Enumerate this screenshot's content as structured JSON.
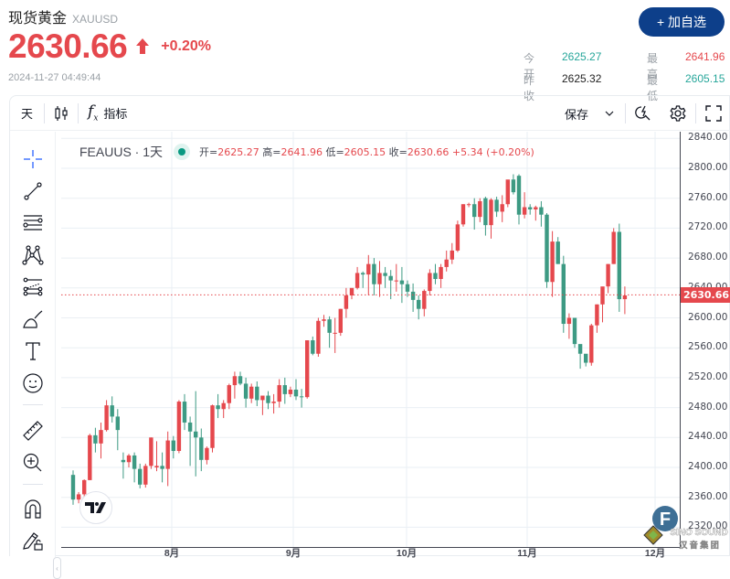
{
  "header": {
    "title": "现货黄金",
    "symbol": "XAUUSD",
    "price": "2630.66",
    "change_pct": "+0.20%",
    "timestamp": "2024-11-27 04:49:44",
    "add_watchlist_label": "+ 加自选",
    "stats": {
      "open_label": "今开",
      "open": "2625.27",
      "prev_close_label": "昨收",
      "prev_close": "2625.32",
      "high_label": "最高",
      "high": "2641.96",
      "low_label": "最低",
      "low": "2605.15"
    }
  },
  "toolbar": {
    "interval": "天",
    "chart_type_icon": "candlestick-icon",
    "indicators_label": "指标",
    "save_label": "保存",
    "icons": [
      "chevron-down-icon",
      "quick-search-icon",
      "gear-icon",
      "fullscreen-icon"
    ]
  },
  "left_tools": [
    "crosshair-icon",
    "trend-line-icon",
    "horizontal-lines-icon",
    "pattern-icon",
    "fib-icon",
    "brush-icon",
    "text-icon",
    "emoji-icon",
    "ruler-icon",
    "zoom-in-icon",
    "magnet-icon",
    "lock-drawings-icon"
  ],
  "legend": {
    "symbol": "FEAUUS · 1天",
    "open_label": "开=",
    "open": "2625.27",
    "high_label": "高=",
    "high": "2641.96",
    "low_label": "低=",
    "low": "2605.15",
    "close_label": "收=",
    "close": "2630.66",
    "change": "+5.34 (+0.20%)"
  },
  "colors": {
    "up": "#e5484d",
    "down": "#3d9a83",
    "accent": "#0d3f8a",
    "grid": "#eaeff4"
  },
  "watermark": {
    "line1": "SINO SOUND",
    "line2": "汉 音 集 团"
  },
  "chart_data": {
    "type": "candlestick",
    "title": "FEAUUS · 1天",
    "ylim": [
      2312,
      2848
    ],
    "y_ticks": [
      2840,
      2800,
      2760,
      2720,
      2680,
      2640,
      2600,
      2560,
      2520,
      2480,
      2440,
      2400,
      2360,
      2320
    ],
    "x_ticks": [
      {
        "label": "8月",
        "index": 18
      },
      {
        "label": "9月",
        "index": 40
      },
      {
        "label": "10月",
        "index": 61
      },
      {
        "label": "11月",
        "index": 84
      },
      {
        "label": "12月",
        "index": 107
      }
    ],
    "last_price": "2630.66",
    "grid": true,
    "ohlc": [
      [
        2390,
        2396,
        2350,
        2357
      ],
      [
        2357,
        2367,
        2352,
        2364
      ],
      [
        2364,
        2384,
        2356,
        2383
      ],
      [
        2383,
        2445,
        2383,
        2443
      ],
      [
        2443,
        2453,
        2420,
        2432
      ],
      [
        2432,
        2460,
        2412,
        2450
      ],
      [
        2450,
        2490,
        2448,
        2483
      ],
      [
        2483,
        2495,
        2460,
        2468
      ],
      [
        2468,
        2478,
        2423,
        2450
      ],
      [
        2410,
        2420,
        2385,
        2407
      ],
      [
        2407,
        2418,
        2400,
        2416
      ],
      [
        2416,
        2420,
        2380,
        2398
      ],
      [
        2398,
        2405,
        2372,
        2377
      ],
      [
        2377,
        2405,
        2373,
        2402
      ],
      [
        2402,
        2440,
        2398,
        2440
      ],
      [
        2400,
        2435,
        2395,
        2402
      ],
      [
        2402,
        2420,
        2380,
        2398
      ],
      [
        2398,
        2448,
        2375,
        2436
      ],
      [
        2436,
        2442,
        2412,
        2422
      ],
      [
        2422,
        2490,
        2419,
        2488
      ],
      [
        2488,
        2498,
        2450,
        2460
      ],
      [
        2460,
        2468,
        2402,
        2448
      ],
      [
        2448,
        2502,
        2388,
        2440
      ],
      [
        2440,
        2452,
        2395,
        2410
      ],
      [
        2410,
        2428,
        2404,
        2426
      ],
      [
        2426,
        2484,
        2420,
        2483
      ],
      [
        2483,
        2498,
        2466,
        2478
      ],
      [
        2478,
        2490,
        2466,
        2486
      ],
      [
        2486,
        2512,
        2478,
        2510
      ],
      [
        2510,
        2528,
        2492,
        2522
      ],
      [
        2522,
        2528,
        2510,
        2512
      ],
      [
        2512,
        2520,
        2480,
        2492
      ],
      [
        2492,
        2512,
        2486,
        2508
      ],
      [
        2508,
        2515,
        2482,
        2490
      ],
      [
        2490,
        2495,
        2470,
        2496
      ],
      [
        2496,
        2502,
        2478,
        2486
      ],
      [
        2486,
        2498,
        2472,
        2488
      ],
      [
        2488,
        2518,
        2480,
        2510
      ],
      [
        2510,
        2520,
        2485,
        2498
      ],
      [
        2498,
        2508,
        2494,
        2504
      ],
      [
        2504,
        2518,
        2490,
        2495
      ],
      [
        2495,
        2505,
        2480,
        2494
      ],
      [
        2494,
        2570,
        2492,
        2570
      ],
      [
        2570,
        2575,
        2550,
        2552
      ],
      [
        2552,
        2600,
        2548,
        2596
      ],
      [
        2596,
        2604,
        2588,
        2598
      ],
      [
        2598,
        2602,
        2560,
        2580
      ],
      [
        2580,
        2600,
        2553,
        2580
      ],
      [
        2580,
        2612,
        2576,
        2612
      ],
      [
        2612,
        2640,
        2600,
        2630
      ],
      [
        2630,
        2635,
        2625,
        2640
      ],
      [
        2640,
        2668,
        2638,
        2660
      ],
      [
        2660,
        2662,
        2640,
        2658
      ],
      [
        2658,
        2684,
        2630,
        2672
      ],
      [
        2672,
        2680,
        2630,
        2645
      ],
      [
        2645,
        2676,
        2628,
        2660
      ],
      [
        2660,
        2668,
        2640,
        2656
      ],
      [
        2656,
        2664,
        2625,
        2650
      ],
      [
        2650,
        2672,
        2635,
        2650
      ],
      [
        2650,
        2668,
        2620,
        2645
      ],
      [
        2645,
        2650,
        2628,
        2635
      ],
      [
        2635,
        2646,
        2608,
        2624
      ],
      [
        2624,
        2630,
        2598,
        2612
      ],
      [
        2612,
        2638,
        2602,
        2636
      ],
      [
        2636,
        2665,
        2630,
        2660
      ],
      [
        2660,
        2672,
        2645,
        2652
      ],
      [
        2652,
        2672,
        2640,
        2668
      ],
      [
        2668,
        2690,
        2662,
        2678
      ],
      [
        2678,
        2700,
        2672,
        2690
      ],
      [
        2690,
        2730,
        2688,
        2725
      ],
      [
        2725,
        2752,
        2722,
        2752
      ],
      [
        2752,
        2754,
        2748,
        2752
      ],
      [
        2752,
        2760,
        2718,
        2735
      ],
      [
        2735,
        2760,
        2728,
        2756
      ],
      [
        2760,
        2762,
        2710,
        2724
      ],
      [
        2724,
        2760,
        2706,
        2758
      ],
      [
        2758,
        2762,
        2735,
        2742
      ],
      [
        2742,
        2764,
        2728,
        2752
      ],
      [
        2752,
        2780,
        2748,
        2785
      ],
      [
        2785,
        2792,
        2765,
        2768
      ],
      [
        2790,
        2792,
        2725,
        2738
      ],
      [
        2738,
        2768,
        2733,
        2748
      ],
      [
        2748,
        2752,
        2738,
        2745
      ],
      [
        2745,
        2750,
        2730,
        2748
      ],
      [
        2748,
        2756,
        2722,
        2738
      ],
      [
        2738,
        2740,
        2640,
        2648
      ],
      [
        2648,
        2716,
        2628,
        2702
      ],
      [
        2702,
        2708,
        2672,
        2672
      ],
      [
        2672,
        2683,
        2580,
        2592
      ],
      [
        2592,
        2606,
        2572,
        2600
      ],
      [
        2600,
        2597,
        2560,
        2565
      ],
      [
        2565,
        2560,
        2532,
        2552
      ],
      [
        2552,
        2548,
        2535,
        2540
      ],
      [
        2540,
        2592,
        2536,
        2590
      ],
      [
        2590,
        2618,
        2580,
        2618
      ],
      [
        2618,
        2640,
        2594,
        2642
      ],
      [
        2642,
        2672,
        2633,
        2672
      ],
      [
        2672,
        2720,
        2672,
        2715
      ],
      [
        2715,
        2726,
        2608,
        2625
      ],
      [
        2625,
        2642,
        2605,
        2630
      ]
    ]
  }
}
